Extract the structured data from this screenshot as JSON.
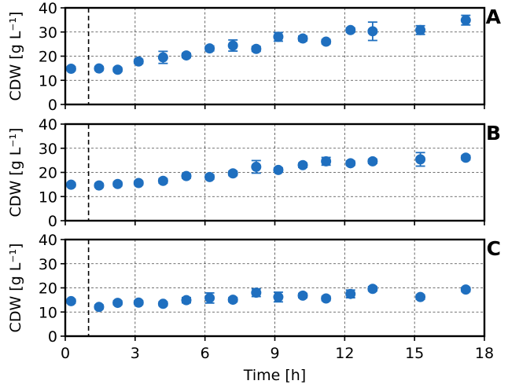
{
  "chart_data": [
    {
      "type": "scatter",
      "panel_label": "A",
      "ylabel": "CDW [g L⁻¹]",
      "ylim": [
        0,
        40
      ],
      "yticks": [
        0,
        10,
        20,
        30,
        40
      ],
      "xlim": [
        0,
        18
      ],
      "xticks": [
        0,
        3,
        6,
        9,
        12,
        15,
        18
      ],
      "grid": true,
      "marker_color": "#1f6fbf",
      "reference_line_x": 1,
      "points": [
        {
          "x": 0.25,
          "y": 14.8,
          "err": 0.8
        },
        {
          "x": 1.45,
          "y": 14.9,
          "err": 0.8
        },
        {
          "x": 2.25,
          "y": 14.4,
          "err": 0.8
        },
        {
          "x": 3.15,
          "y": 17.8,
          "err": 0.9
        },
        {
          "x": 4.2,
          "y": 19.5,
          "err": 2.5
        },
        {
          "x": 5.2,
          "y": 20.3,
          "err": 0.9
        },
        {
          "x": 6.2,
          "y": 23.2,
          "err": 1.0
        },
        {
          "x": 7.2,
          "y": 24.4,
          "err": 2.3
        },
        {
          "x": 8.2,
          "y": 23.0,
          "err": 1.0
        },
        {
          "x": 9.15,
          "y": 28.0,
          "err": 1.8
        },
        {
          "x": 10.2,
          "y": 27.3,
          "err": 1.0
        },
        {
          "x": 11.2,
          "y": 26.0,
          "err": 0.9
        },
        {
          "x": 12.25,
          "y": 30.8,
          "err": 0.9
        },
        {
          "x": 13.2,
          "y": 30.3,
          "err": 3.8
        },
        {
          "x": 15.25,
          "y": 30.8,
          "err": 1.8
        },
        {
          "x": 17.2,
          "y": 34.9,
          "err": 2.0
        }
      ]
    },
    {
      "type": "scatter",
      "panel_label": "B",
      "ylabel": "CDW [g L⁻¹]",
      "ylim": [
        0,
        40
      ],
      "yticks": [
        0,
        10,
        20,
        30,
        40
      ],
      "xlim": [
        0,
        18
      ],
      "xticks": [
        0,
        3,
        6,
        9,
        12,
        15,
        18
      ],
      "grid": true,
      "marker_color": "#1f6fbf",
      "reference_line_x": 1,
      "points": [
        {
          "x": 0.25,
          "y": 14.9,
          "err": 0.8
        },
        {
          "x": 1.45,
          "y": 14.6,
          "err": 0.8
        },
        {
          "x": 2.25,
          "y": 15.2,
          "err": 0.8
        },
        {
          "x": 3.15,
          "y": 15.6,
          "err": 0.8
        },
        {
          "x": 4.2,
          "y": 16.5,
          "err": 0.9
        },
        {
          "x": 5.2,
          "y": 18.5,
          "err": 0.9
        },
        {
          "x": 6.2,
          "y": 18.1,
          "err": 0.9
        },
        {
          "x": 7.2,
          "y": 19.6,
          "err": 0.9
        },
        {
          "x": 8.2,
          "y": 22.3,
          "err": 2.6
        },
        {
          "x": 9.15,
          "y": 21.0,
          "err": 0.9
        },
        {
          "x": 10.2,
          "y": 23.0,
          "err": 0.9
        },
        {
          "x": 11.2,
          "y": 24.6,
          "err": 1.6
        },
        {
          "x": 12.25,
          "y": 23.8,
          "err": 0.9
        },
        {
          "x": 13.2,
          "y": 24.6,
          "err": 0.9
        },
        {
          "x": 15.25,
          "y": 25.4,
          "err": 2.8
        },
        {
          "x": 17.2,
          "y": 26.1,
          "err": 0.9
        }
      ]
    },
    {
      "type": "scatter",
      "panel_label": "C",
      "ylabel": "CDW [g L⁻¹]",
      "xlabel": "Time [h]",
      "ylim": [
        0,
        40
      ],
      "yticks": [
        0,
        10,
        20,
        30,
        40
      ],
      "xlim": [
        0,
        18
      ],
      "xticks": [
        0,
        3,
        6,
        9,
        12,
        15,
        18
      ],
      "grid": true,
      "marker_color": "#1f6fbf",
      "reference_line_x": 1,
      "points": [
        {
          "x": 0.25,
          "y": 14.5,
          "err": 0.8
        },
        {
          "x": 1.45,
          "y": 12.1,
          "err": 0.8
        },
        {
          "x": 2.25,
          "y": 13.8,
          "err": 0.8
        },
        {
          "x": 3.15,
          "y": 13.9,
          "err": 0.8
        },
        {
          "x": 4.2,
          "y": 13.4,
          "err": 0.8
        },
        {
          "x": 5.2,
          "y": 14.9,
          "err": 1.1
        },
        {
          "x": 6.2,
          "y": 15.8,
          "err": 2.1
        },
        {
          "x": 7.2,
          "y": 15.1,
          "err": 0.9
        },
        {
          "x": 8.2,
          "y": 18.0,
          "err": 1.6
        },
        {
          "x": 9.15,
          "y": 16.2,
          "err": 2.0
        },
        {
          "x": 10.2,
          "y": 16.8,
          "err": 0.9
        },
        {
          "x": 11.2,
          "y": 15.6,
          "err": 0.9
        },
        {
          "x": 12.25,
          "y": 17.5,
          "err": 1.6
        },
        {
          "x": 13.2,
          "y": 19.6,
          "err": 0.9
        },
        {
          "x": 15.25,
          "y": 16.2,
          "err": 0.9
        },
        {
          "x": 17.2,
          "y": 19.3,
          "err": 0.9
        }
      ]
    }
  ]
}
